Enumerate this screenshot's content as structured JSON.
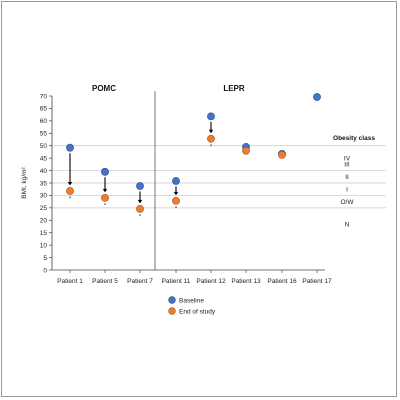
{
  "chart_data": {
    "type": "scatter",
    "ylabel": "BMI, kg/m²",
    "ylim": [
      0,
      70
    ],
    "yticks": [
      0,
      5,
      10,
      15,
      20,
      25,
      30,
      35,
      40,
      45,
      50,
      55,
      60,
      65,
      70
    ],
    "categories": [
      "Patient 1",
      "Patient 5",
      "Patient 7",
      "Patient 11",
      "Patient 12",
      "Patient 13",
      "Patient 16",
      "Patient 17"
    ],
    "groups": [
      {
        "label": "POMC",
        "categories": [
          "Patient 1",
          "Patient 5",
          "Patient 7"
        ]
      },
      {
        "label": "LEPR",
        "categories": [
          "Patient 11",
          "Patient 12",
          "Patient 13",
          "Patient 16",
          "Patient 17"
        ]
      }
    ],
    "series": [
      {
        "name": "Baseline",
        "color": "#4472C4",
        "values": [
          49.2,
          39.5,
          33.8,
          35.8,
          61.8,
          49.5,
          46.7,
          69.6
        ]
      },
      {
        "name": "End of study",
        "color": "#ED7D31",
        "values": [
          31.8,
          29.0,
          24.6,
          27.8,
          52.8,
          48.0,
          46.3,
          null
        ]
      }
    ],
    "arrows": [
      "Patient 1",
      "Patient 5",
      "Patient 7",
      "Patient 11",
      "Patient 12"
    ],
    "asterisk_marks": [
      "Patient 1",
      "Patient 5",
      "Patient 7",
      "Patient 11",
      "Patient 12"
    ],
    "asterisk_symbol": "*",
    "obesity_class": {
      "title": "Obesity class",
      "boundaries": [
        25,
        30,
        35,
        40,
        50
      ],
      "labels": [
        {
          "label": "IV",
          "value": 45
        },
        {
          "label": "III",
          "value": 42.5
        },
        {
          "label": "II",
          "value": 37.5
        },
        {
          "label": "I",
          "value": 32.5
        },
        {
          "label": "O/W",
          "value": 27.5
        },
        {
          "label": "N",
          "value": 18.5
        }
      ]
    },
    "legend": {
      "placement": "bottom-center",
      "entries": [
        "Baseline",
        "End of study"
      ]
    },
    "grid": false
  }
}
